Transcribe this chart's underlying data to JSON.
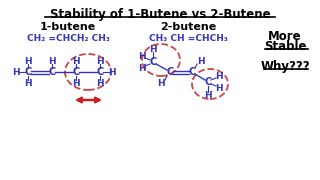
{
  "title": "Stability of 1-Butene vs 2-Butene",
  "bg_color": "#ffffff",
  "blue_color": "#3333bb",
  "dark_color": "#000000",
  "red_color": "#cc2020",
  "dashed_color": "#cc4444",
  "label_1butene": "1-butene",
  "label_2butene": "2-butene",
  "formula_1butene": "CH₂ =CHCH₂ CH₃",
  "formula_2butene": "CH₃ CH =CHCH₃",
  "more_stable_1": "More",
  "more_stable_2": "Stable",
  "why": "Why???"
}
